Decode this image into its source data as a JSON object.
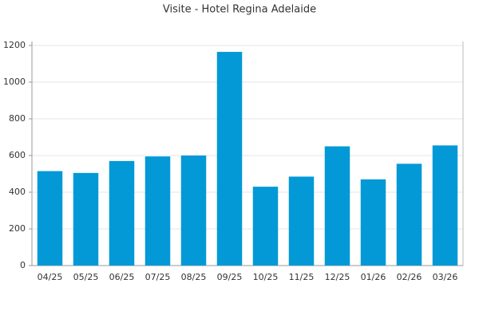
{
  "chart_data": {
    "type": "bar",
    "title": "Visite - Hotel Regina Adelaide",
    "categories": [
      "04/25",
      "05/25",
      "06/25",
      "07/25",
      "08/25",
      "09/25",
      "10/25",
      "11/25",
      "12/25",
      "01/26",
      "02/26",
      "03/26"
    ],
    "values": [
      515,
      505,
      570,
      595,
      600,
      1165,
      430,
      485,
      650,
      470,
      555,
      655
    ],
    "color": "#0399d6",
    "ylim": [
      0,
      1200
    ],
    "yticks": [
      0,
      200,
      400,
      600,
      800,
      1000,
      1200
    ],
    "grid": true
  }
}
